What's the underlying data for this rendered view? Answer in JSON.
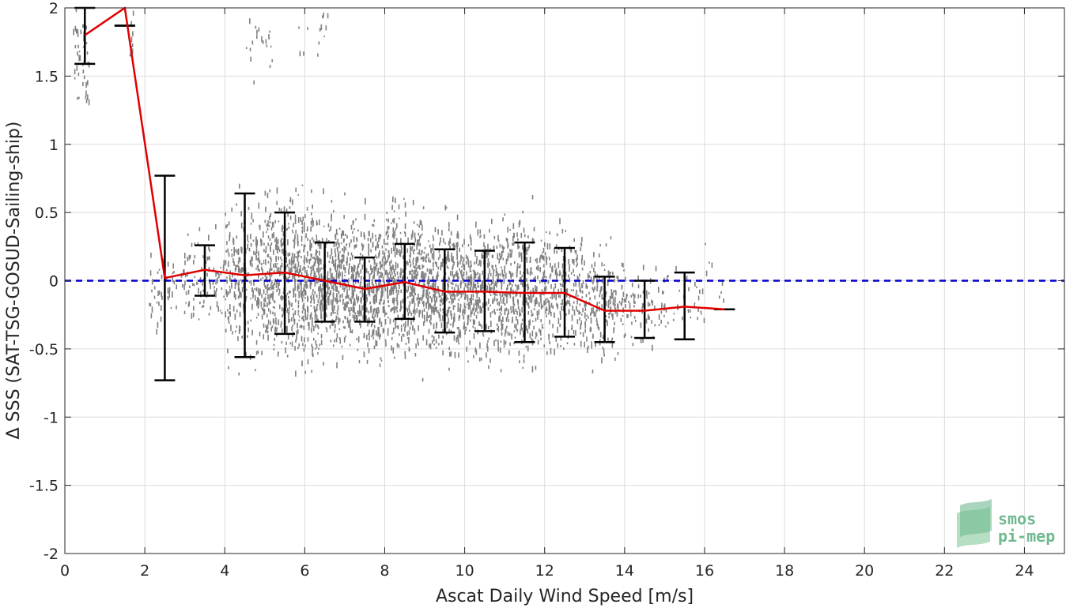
{
  "chart_data": {
    "type": "scatter",
    "title": "",
    "xlabel": "Ascat Daily Wind Speed [m/s]",
    "ylabel": "Δ SSS (SAT-TSG-GOSUD-Sailing-ship)",
    "xlim": [
      0,
      25
    ],
    "ylim": [
      -2,
      2
    ],
    "xticks": [
      0,
      2,
      4,
      6,
      8,
      10,
      12,
      14,
      16,
      18,
      20,
      22,
      24
    ],
    "yticks": [
      -2,
      -1.5,
      -1,
      -0.5,
      0,
      0.5,
      1,
      1.5,
      2
    ],
    "grid": true,
    "reference_line": {
      "y": 0,
      "color": "#0000cc",
      "style": "dashed"
    },
    "mean_curve": {
      "color": "#e00000",
      "x": [
        0.5,
        1.5,
        2.5,
        3.5,
        4.5,
        5.5,
        6.5,
        7.5,
        8.5,
        9.5,
        10.5,
        11.5,
        12.5,
        13.5,
        14.5,
        15.5,
        16.5
      ],
      "y": [
        1.8,
        2.0,
        0.02,
        0.08,
        0.04,
        0.06,
        0.0,
        -0.06,
        -0.01,
        -0.08,
        -0.08,
        -0.09,
        -0.09,
        -0.22,
        -0.22,
        -0.19,
        -0.21
      ]
    },
    "error_bars": {
      "color": "#000000",
      "x": [
        0.5,
        1.5,
        2.5,
        3.5,
        4.5,
        5.5,
        6.5,
        7.5,
        8.5,
        9.5,
        10.5,
        11.5,
        12.5,
        13.5,
        14.5,
        15.5,
        16.5
      ],
      "lower": [
        1.59,
        1.87,
        -0.73,
        -0.11,
        -0.56,
        -0.39,
        -0.3,
        -0.3,
        -0.28,
        -0.38,
        -0.37,
        -0.45,
        -0.41,
        -0.45,
        -0.42,
        -0.43,
        -0.21
      ],
      "upper": [
        2.0,
        1.87,
        0.77,
        0.26,
        0.64,
        0.5,
        0.28,
        0.17,
        0.27,
        0.23,
        0.22,
        0.28,
        0.24,
        0.03,
        0.0,
        0.06,
        -0.21
      ]
    },
    "scatter_color": "#808080",
    "scatter_clusters": [
      {
        "x": [
          0.2,
          0.6
        ],
        "y_mean": 1.62,
        "y_sd": 0.18,
        "n": 45
      },
      {
        "x": [
          1.6,
          1.7
        ],
        "y_mean": 1.72,
        "y_sd": 0.12,
        "n": 10
      },
      {
        "x": [
          2.1,
          2.8
        ],
        "y_mean": -0.05,
        "y_sd": 0.14,
        "n": 45
      },
      {
        "x": [
          2.9,
          4.0
        ],
        "y_mean": 0.0,
        "y_sd": 0.16,
        "n": 90
      },
      {
        "x": [
          4.0,
          5.0
        ],
        "y_mean": 0.0,
        "y_sd": 0.26,
        "n": 250
      },
      {
        "x": [
          5.0,
          6.0
        ],
        "y_mean": 0.02,
        "y_sd": 0.28,
        "n": 420
      },
      {
        "x": [
          6.0,
          7.0
        ],
        "y_mean": 0.0,
        "y_sd": 0.24,
        "n": 430
      },
      {
        "x": [
          7.0,
          8.0
        ],
        "y_mean": -0.04,
        "y_sd": 0.22,
        "n": 420
      },
      {
        "x": [
          8.0,
          9.0
        ],
        "y_mean": 0.0,
        "y_sd": 0.24,
        "n": 400
      },
      {
        "x": [
          9.0,
          10.0
        ],
        "y_mean": -0.06,
        "y_sd": 0.22,
        "n": 380
      },
      {
        "x": [
          10.0,
          11.0
        ],
        "y_mean": -0.06,
        "y_sd": 0.24,
        "n": 340
      },
      {
        "x": [
          11.0,
          12.0
        ],
        "y_mean": -0.07,
        "y_sd": 0.24,
        "n": 300
      },
      {
        "x": [
          12.0,
          13.0
        ],
        "y_mean": -0.08,
        "y_sd": 0.22,
        "n": 230
      },
      {
        "x": [
          13.0,
          14.0
        ],
        "y_mean": -0.18,
        "y_sd": 0.18,
        "n": 170
      },
      {
        "x": [
          14.0,
          15.0
        ],
        "y_mean": -0.2,
        "y_sd": 0.14,
        "n": 70
      },
      {
        "x": [
          15.0,
          16.0
        ],
        "y_mean": -0.15,
        "y_sd": 0.12,
        "n": 35
      },
      {
        "x": [
          16.0,
          16.6
        ],
        "y_mean": 0.05,
        "y_sd": 0.12,
        "n": 8
      },
      {
        "x": [
          4.5,
          5.2
        ],
        "y_mean": 1.75,
        "y_sd": 0.12,
        "n": 20
      },
      {
        "x": [
          5.8,
          6.6
        ],
        "y_mean": 1.85,
        "y_sd": 0.12,
        "n": 14
      }
    ]
  },
  "logo": {
    "line1": "smos",
    "line2": "pi-mep",
    "color": "#6fb98f"
  }
}
